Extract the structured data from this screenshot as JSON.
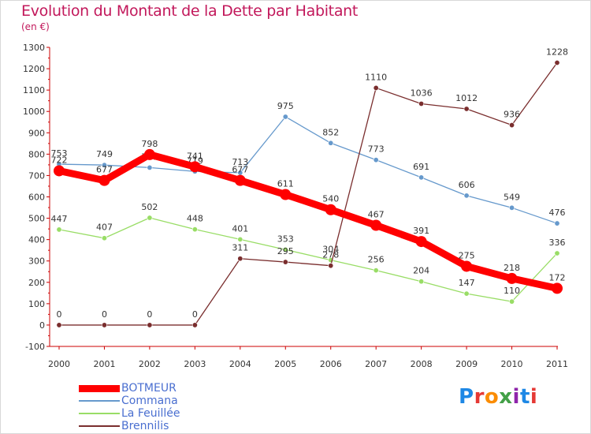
{
  "header": {
    "title": "Evolution du Montant de la Dette par Habitant",
    "subtitle": "(en €)"
  },
  "logo": {
    "text": "Proxiti",
    "letters": [
      {
        "ch": "P",
        "color": "#1e88e5"
      },
      {
        "ch": "r",
        "color": "#e53935"
      },
      {
        "ch": "o",
        "color": "#fb8c00"
      },
      {
        "ch": "x",
        "color": "#43a047"
      },
      {
        "ch": "i",
        "color": "#8e24aa"
      },
      {
        "ch": "t",
        "color": "#1e88e5"
      },
      {
        "ch": "i",
        "color": "#e53935"
      }
    ]
  },
  "chart_data": {
    "type": "line",
    "title": "Evolution du Montant de la Dette par Habitant",
    "subtitle": "(en €)",
    "xlabel": "",
    "ylabel": "",
    "ylim": [
      -100,
      1300
    ],
    "yticks": [
      -100,
      0,
      100,
      200,
      300,
      400,
      500,
      600,
      700,
      800,
      900,
      1000,
      1100,
      1200,
      1300
    ],
    "categories": [
      "2000",
      "2001",
      "2002",
      "2003",
      "2004",
      "2005",
      "2006",
      "2007",
      "2008",
      "2009",
      "2010",
      "2011"
    ],
    "grid": false,
    "legend_position": "bottom-left",
    "series": [
      {
        "name": "BOTMEUR",
        "color": "#ff0000",
        "thick": true,
        "values": [
          722,
          677,
          798,
          741,
          677,
          611,
          540,
          467,
          391,
          275,
          218,
          172
        ]
      },
      {
        "name": "Commana",
        "color": "#6699cc",
        "thick": false,
        "values": [
          753,
          749,
          737,
          719,
          713,
          975,
          852,
          773,
          691,
          606,
          549,
          476
        ]
      },
      {
        "name": "La Feuillée",
        "color": "#99dd66",
        "thick": false,
        "values": [
          447,
          407,
          502,
          448,
          401,
          353,
          304,
          256,
          204,
          147,
          110,
          336
        ]
      },
      {
        "name": "Brennilis",
        "color": "#7a2e2e",
        "thick": false,
        "values": [
          0,
          0,
          0,
          0,
          311,
          295,
          278,
          1110,
          1036,
          1012,
          936,
          1228
        ]
      }
    ]
  }
}
